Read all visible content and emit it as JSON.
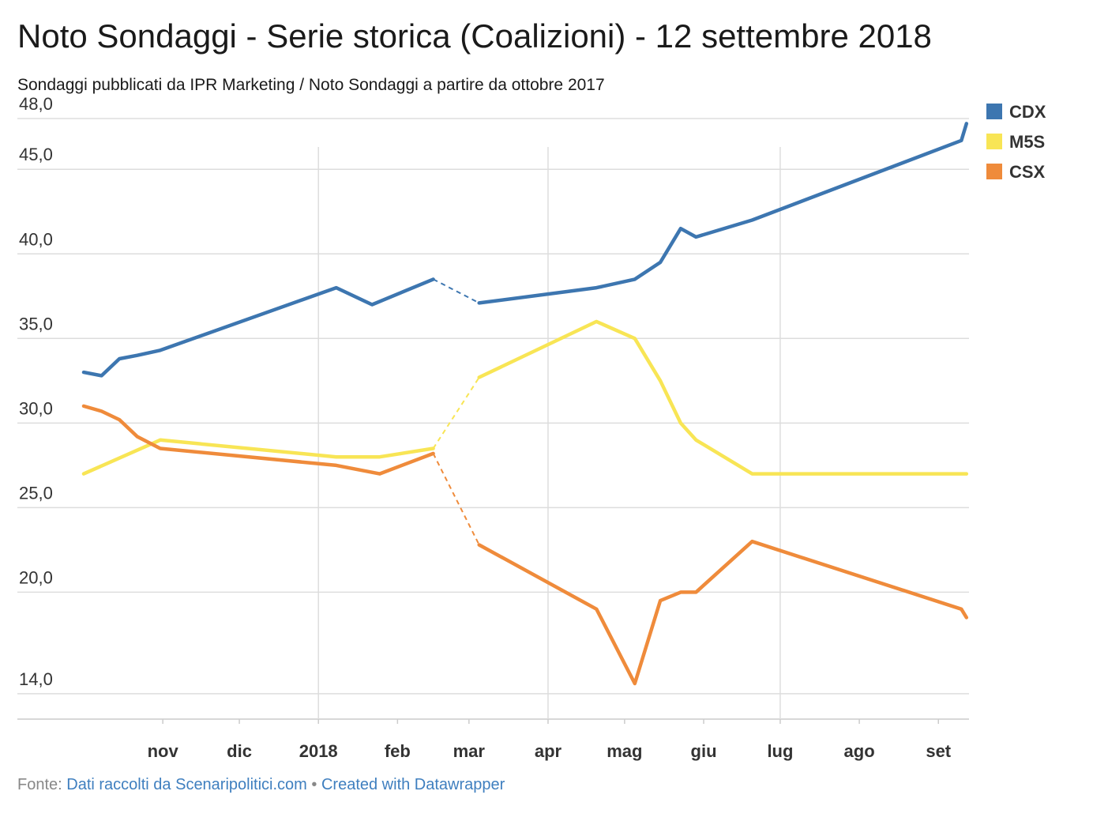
{
  "header": {
    "title": "Noto Sondaggi - Serie storica (Coalizioni) - 12 settembre 2018",
    "subtitle": "Sondaggi pubblicati da IPR Marketing / Noto Sondaggi a partire da ottobre 2017"
  },
  "footer": {
    "source_prefix": "Fonte:",
    "source_link": "Dati raccolti da Scenaripolitici.com",
    "separator": "•",
    "credit_link": "Created with Datawrapper"
  },
  "colors": {
    "CDX": "#3d76b0",
    "M5S": "#f8e555",
    "CSX": "#ef8b3b",
    "grid": "#dddddd",
    "link": "#3f7fbf"
  },
  "chart_data": {
    "type": "line",
    "y_ticks": [
      {
        "value": 14,
        "label": "14,0"
      },
      {
        "value": 20,
        "label": "20,0"
      },
      {
        "value": 25,
        "label": "25,0"
      },
      {
        "value": 30,
        "label": "30,0"
      },
      {
        "value": 35,
        "label": "35,0"
      },
      {
        "value": 40,
        "label": "40,0"
      },
      {
        "value": 45,
        "label": "45,0"
      },
      {
        "value": 48,
        "label": "48,0"
      }
    ],
    "ylim": [
      12.5,
      48
    ],
    "xlim": [
      "2017-10-01",
      "2018-09-13"
    ],
    "x_labels": [
      {
        "label": "nov",
        "date": "2017-11-01",
        "gridline": false
      },
      {
        "label": "dic",
        "date": "2017-12-01",
        "gridline": false
      },
      {
        "label": "2018",
        "date": "2018-01-01",
        "gridline": true
      },
      {
        "label": "feb",
        "date": "2018-02-01",
        "gridline": false
      },
      {
        "label": "mar",
        "date": "2018-03-01",
        "gridline": false
      },
      {
        "label": "apr",
        "date": "2018-04-01",
        "gridline": true
      },
      {
        "label": "mag",
        "date": "2018-05-01",
        "gridline": false
      },
      {
        "label": "giu",
        "date": "2018-06-01",
        "gridline": false
      },
      {
        "label": "lug",
        "date": "2018-07-01",
        "gridline": true
      },
      {
        "label": "ago",
        "date": "2018-08-01",
        "gridline": false
      },
      {
        "label": "set",
        "date": "2018-09-01",
        "gridline": false
      }
    ],
    "legend_position": "top-right",
    "gap_dashed_between": [
      "2018-02-15",
      "2018-03-05"
    ],
    "series": [
      {
        "name": "CDX",
        "color": "#3d76b0",
        "points": [
          [
            "2017-10-01",
            33.0
          ],
          [
            "2017-10-08",
            32.8
          ],
          [
            "2017-10-15",
            33.8
          ],
          [
            "2017-10-22",
            34.0
          ],
          [
            "2017-10-31",
            34.3
          ],
          [
            "2018-01-08",
            38.0
          ],
          [
            "2018-01-22",
            37.0
          ],
          [
            "2018-02-15",
            38.5
          ],
          [
            "2018-03-05",
            37.1
          ],
          [
            "2018-04-20",
            38.0
          ],
          [
            "2018-05-05",
            38.5
          ],
          [
            "2018-05-15",
            39.5
          ],
          [
            "2018-05-23",
            41.5
          ],
          [
            "2018-05-29",
            41.0
          ],
          [
            "2018-06-20",
            42.0
          ],
          [
            "2018-09-10",
            46.7
          ],
          [
            "2018-09-12",
            47.7
          ]
        ]
      },
      {
        "name": "M5S",
        "color": "#f8e555",
        "points": [
          [
            "2017-10-01",
            27.0
          ],
          [
            "2017-10-31",
            29.0
          ],
          [
            "2018-01-08",
            28.0
          ],
          [
            "2018-01-25",
            28.0
          ],
          [
            "2018-02-15",
            28.5
          ],
          [
            "2018-03-05",
            32.7
          ],
          [
            "2018-04-20",
            36.0
          ],
          [
            "2018-05-05",
            35.0
          ],
          [
            "2018-05-15",
            32.5
          ],
          [
            "2018-05-23",
            30.0
          ],
          [
            "2018-05-29",
            29.0
          ],
          [
            "2018-06-20",
            27.0
          ],
          [
            "2018-09-12",
            27.0
          ]
        ]
      },
      {
        "name": "CSX",
        "color": "#ef8b3b",
        "points": [
          [
            "2017-10-01",
            31.0
          ],
          [
            "2017-10-08",
            30.7
          ],
          [
            "2017-10-15",
            30.2
          ],
          [
            "2017-10-22",
            29.2
          ],
          [
            "2017-10-31",
            28.5
          ],
          [
            "2018-01-08",
            27.5
          ],
          [
            "2018-01-25",
            27.0
          ],
          [
            "2018-02-15",
            28.2
          ],
          [
            "2018-03-05",
            22.8
          ],
          [
            "2018-04-20",
            19.0
          ],
          [
            "2018-05-05",
            14.6
          ],
          [
            "2018-05-15",
            19.5
          ],
          [
            "2018-05-23",
            20.0
          ],
          [
            "2018-05-29",
            20.0
          ],
          [
            "2018-06-20",
            23.0
          ],
          [
            "2018-09-10",
            19.0
          ],
          [
            "2018-09-12",
            18.5
          ]
        ]
      }
    ]
  }
}
